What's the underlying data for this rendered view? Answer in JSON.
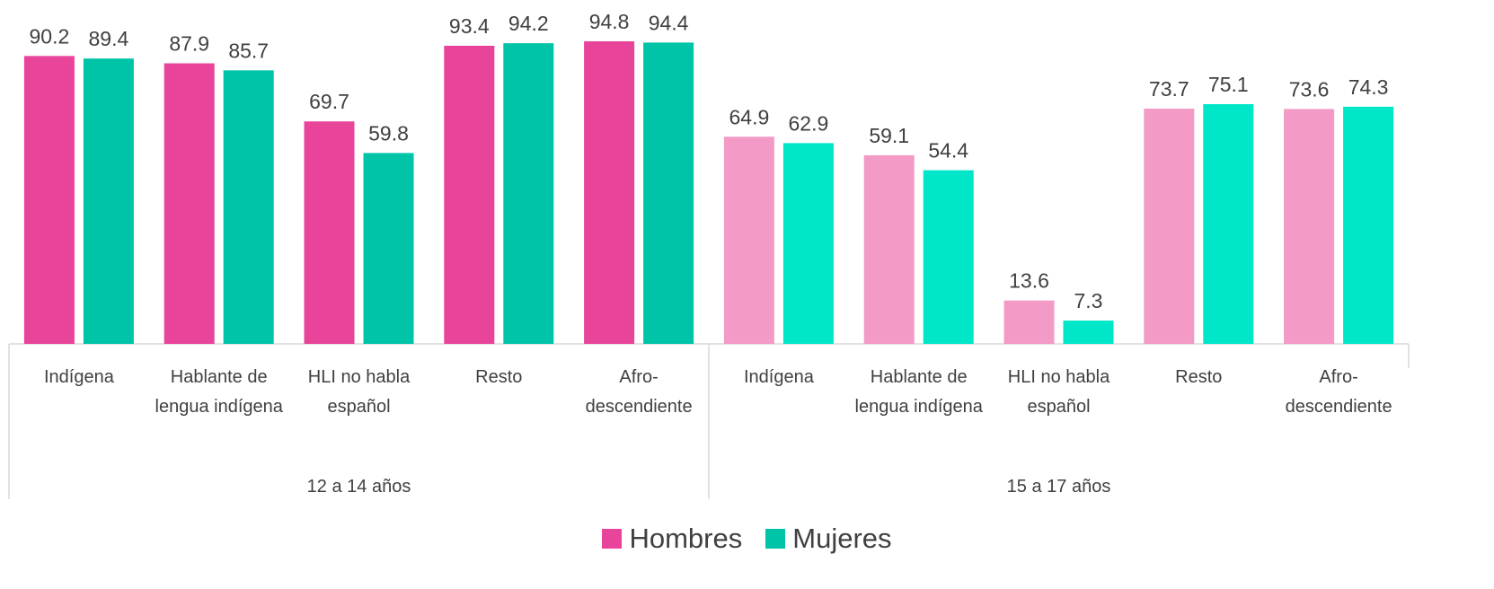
{
  "chart_data": {
    "type": "bar",
    "groups": [
      {
        "label": "12 a 14 años",
        "categories": [
          "Indígena",
          "Hablante de lengua indígena",
          "HLI no habla español",
          "Resto",
          "Afro-descendiente"
        ]
      },
      {
        "label": "15 a 17 años",
        "categories": [
          "Indígena",
          "Hablante de lengua indígena",
          "HLI no habla español",
          "Resto",
          "Afro-descendiente"
        ]
      }
    ],
    "series": [
      {
        "name": "Hombres",
        "color": "#E8449A",
        "group_colors": [
          "#E8449A",
          "#F39AC6"
        ],
        "values": [
          90.2,
          87.9,
          69.7,
          93.4,
          94.8,
          64.9,
          59.1,
          13.6,
          73.7,
          73.6
        ]
      },
      {
        "name": "Mujeres",
        "color": "#00C4A7",
        "group_colors": [
          "#00C4A7",
          "#00E6C8"
        ],
        "values": [
          89.4,
          85.7,
          59.8,
          94.2,
          94.4,
          62.9,
          54.4,
          7.3,
          75.1,
          74.3
        ]
      }
    ],
    "ylim": [
      0,
      100
    ],
    "legend": "bottom"
  }
}
